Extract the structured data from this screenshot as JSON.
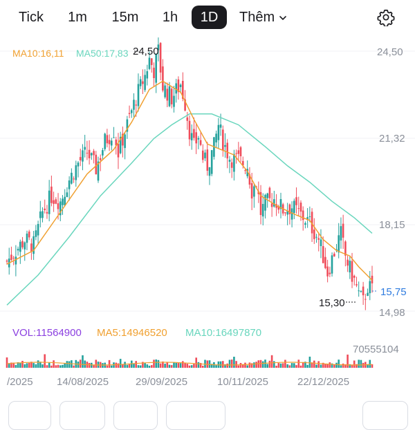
{
  "tabs": [
    {
      "label": "Tick",
      "active": false
    },
    {
      "label": "1m",
      "active": false
    },
    {
      "label": "15m",
      "active": false
    },
    {
      "label": "1h",
      "active": false
    },
    {
      "label": "1D",
      "active": true
    }
  ],
  "more_label": "Thêm",
  "icons": {
    "settings": "gear-icon",
    "more": "chevron-down-icon"
  },
  "colors": {
    "up": "#24a19c",
    "down": "#ef4c5a",
    "ma10": "#f0a030",
    "ma50": "#69d6bd",
    "vol": "#8b3fe0",
    "last": "#2e7bdf"
  },
  "chart_data": {
    "type": "candlestick",
    "interval": "1D",
    "price_axis": {
      "min": 14.98,
      "max": 24.5,
      "ticks": [
        "24,50",
        "21,32",
        "18,15",
        "14,98"
      ]
    },
    "x_ticks": [
      "/2025",
      "14/08/2025",
      "29/09/2025",
      "10/11/2025",
      "22/12/2025"
    ],
    "indicators": {
      "ma10_label": "MA10:16,11",
      "ma50_label": "MA50:17,83"
    },
    "markers": {
      "high_label": "24,50",
      "low_label": "15,30",
      "last_price": "15,75"
    },
    "volume": {
      "label": "VOL:11564900",
      "ma5_label": "MA5:14946520",
      "ma10_label": "MA10:16497870",
      "max_label": "70555104"
    },
    "price_path": [
      [
        0,
        16.8
      ],
      [
        4,
        17.2
      ],
      [
        8,
        17.6
      ],
      [
        12,
        17.4
      ],
      [
        16,
        18.6
      ],
      [
        20,
        19.2
      ],
      [
        24,
        19.0
      ],
      [
        28,
        19.8
      ],
      [
        32,
        20.4
      ],
      [
        36,
        20.8
      ],
      [
        40,
        20.2
      ],
      [
        44,
        21.2
      ],
      [
        48,
        21.6
      ],
      [
        50,
        20.8
      ],
      [
        54,
        21.8
      ],
      [
        58,
        22.8
      ],
      [
        62,
        23.6
      ],
      [
        64,
        24.2
      ],
      [
        66,
        23.8
      ],
      [
        68,
        24.5
      ],
      [
        70,
        23.2
      ],
      [
        74,
        22.8
      ],
      [
        78,
        23.3
      ],
      [
        80,
        22.6
      ],
      [
        82,
        21.6
      ],
      [
        84,
        21.0
      ],
      [
        86,
        21.4
      ],
      [
        88,
        20.6
      ],
      [
        90,
        20.3
      ],
      [
        93,
        21.0
      ],
      [
        95,
        21.8
      ],
      [
        97,
        21.2
      ],
      [
        100,
        20.6
      ],
      [
        104,
        20.5
      ],
      [
        108,
        20.3
      ],
      [
        110,
        19.4
      ],
      [
        112,
        19.7
      ],
      [
        114,
        18.6
      ],
      [
        116,
        18.9
      ],
      [
        120,
        19.1
      ],
      [
        124,
        18.7
      ],
      [
        128,
        18.8
      ],
      [
        132,
        18.5
      ],
      [
        136,
        18.2
      ],
      [
        140,
        17.6
      ],
      [
        142,
        17.0
      ],
      [
        144,
        16.4
      ],
      [
        146,
        16.9
      ],
      [
        148,
        17.4
      ],
      [
        150,
        17.8
      ],
      [
        152,
        17.0
      ],
      [
        154,
        16.5
      ],
      [
        156,
        16.1
      ],
      [
        158,
        15.6
      ],
      [
        160,
        15.3
      ],
      [
        162,
        15.9
      ],
      [
        164,
        15.75
      ]
    ],
    "ma10_path": [
      [
        0,
        16.7
      ],
      [
        12,
        17.2
      ],
      [
        24,
        18.6
      ],
      [
        36,
        20.0
      ],
      [
        48,
        20.9
      ],
      [
        56,
        21.9
      ],
      [
        64,
        23.1
      ],
      [
        70,
        23.4
      ],
      [
        78,
        23.0
      ],
      [
        84,
        22.0
      ],
      [
        90,
        21.1
      ],
      [
        96,
        20.9
      ],
      [
        102,
        20.7
      ],
      [
        108,
        20.1
      ],
      [
        114,
        19.2
      ],
      [
        122,
        18.8
      ],
      [
        130,
        18.5
      ],
      [
        136,
        18.3
      ],
      [
        142,
        17.6
      ],
      [
        148,
        17.2
      ],
      [
        154,
        17.0
      ],
      [
        158,
        16.6
      ],
      [
        164,
        16.11
      ]
    ],
    "ma50_path": [
      [
        0,
        15.2
      ],
      [
        14,
        16.3
      ],
      [
        28,
        17.7
      ],
      [
        42,
        19.2
      ],
      [
        56,
        20.4
      ],
      [
        66,
        21.3
      ],
      [
        74,
        21.8
      ],
      [
        82,
        22.2
      ],
      [
        92,
        22.2
      ],
      [
        104,
        21.8
      ],
      [
        116,
        21.0
      ],
      [
        126,
        20.3
      ],
      [
        136,
        19.7
      ],
      [
        146,
        19.0
      ],
      [
        156,
        18.4
      ],
      [
        164,
        17.83
      ]
    ]
  }
}
